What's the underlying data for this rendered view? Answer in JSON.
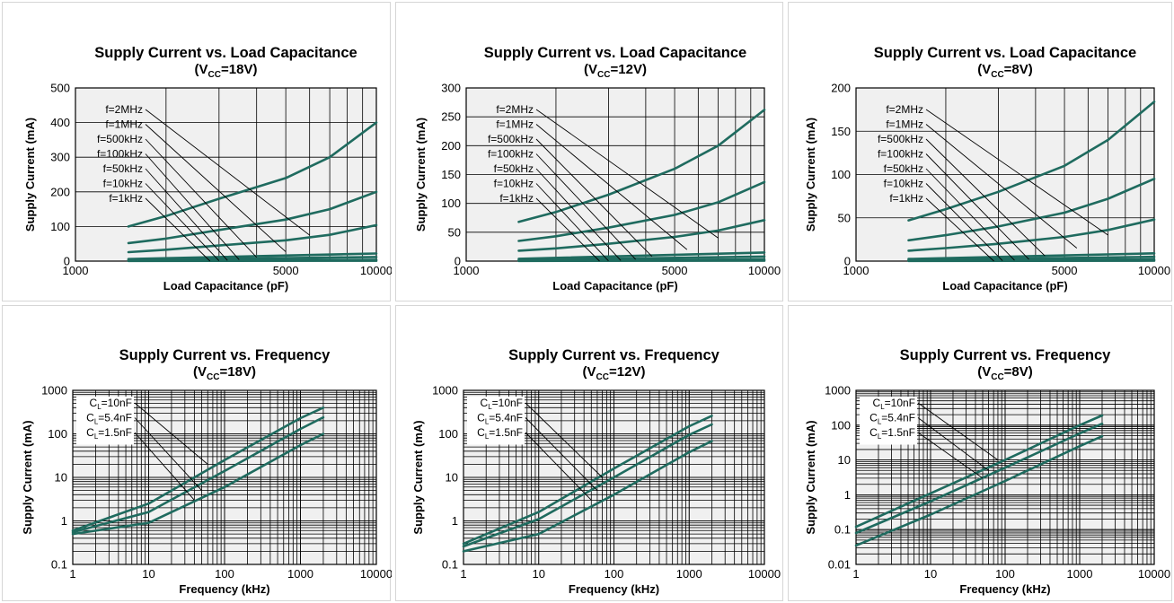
{
  "colors": {
    "plot_bg": "#f0f0f0",
    "grid": "#000000",
    "series": "#1f6b5f",
    "text": "#000000"
  },
  "chart_data": [
    {
      "type": "line",
      "title": "Supply Current vs. Load Capacitance",
      "subtitle": [
        "(V",
        "CC",
        "=18V)"
      ],
      "xlabel": "Load Capacitance (pF)",
      "ylabel": "Supply Current (mA)",
      "xscale": "log",
      "yscale": "linear",
      "xlim": [
        1000,
        10000
      ],
      "ylim": [
        0,
        500
      ],
      "xticks": [
        "1000",
        "5000",
        "10000"
      ],
      "xtick_values": [
        1000,
        5000,
        10000
      ],
      "yticks": [
        "0",
        "100",
        "200",
        "300",
        "400",
        "500"
      ],
      "ytick_values": [
        0,
        100,
        200,
        300,
        400,
        500
      ],
      "xgrid": [
        2000,
        3000,
        4000,
        5000,
        6000,
        7000,
        8000,
        9000
      ],
      "ygrid": [
        100,
        200,
        300,
        400
      ],
      "legend_labels": [
        "f=2MHz",
        "f=1MHz",
        "f=500kHz",
        "f=100kHz",
        "f=50kHz",
        "f=10kHz",
        "f=1kHz"
      ],
      "leader_targets": [
        [
          6000,
          75
        ],
        [
          5000,
          27
        ],
        [
          4000,
          11
        ],
        [
          3500,
          4
        ],
        [
          3200,
          2
        ],
        [
          3000,
          1
        ],
        [
          2800,
          0
        ]
      ],
      "series": [
        {
          "x": [
            1500,
            2000,
            3000,
            5000,
            7000,
            10000
          ],
          "y": [
            100,
            130,
            180,
            240,
            300,
            400
          ]
        },
        {
          "x": [
            1500,
            2000,
            3000,
            5000,
            7000,
            10000
          ],
          "y": [
            52,
            65,
            90,
            120,
            150,
            200
          ]
        },
        {
          "x": [
            1500,
            2000,
            3000,
            5000,
            7000,
            10000
          ],
          "y": [
            26,
            33,
            45,
            60,
            76,
            104
          ]
        },
        {
          "x": [
            1500,
            10000
          ],
          "y": [
            6,
            22
          ]
        },
        {
          "x": [
            1500,
            10000
          ],
          "y": [
            3,
            12
          ]
        },
        {
          "x": [
            1500,
            10000
          ],
          "y": [
            1,
            4
          ]
        },
        {
          "x": [
            1500,
            10000
          ],
          "y": [
            0.5,
            1
          ]
        }
      ]
    },
    {
      "type": "line",
      "title": "Supply Current vs. Load Capacitance",
      "subtitle": [
        "(V",
        "CC",
        "=12V)"
      ],
      "xlabel": "Load Capacitance (pF)",
      "ylabel": "Supply Current (mA)",
      "xscale": "log",
      "yscale": "linear",
      "xlim": [
        1000,
        10000
      ],
      "ylim": [
        0,
        300
      ],
      "xticks": [
        "1000",
        "5000",
        "10000"
      ],
      "xtick_values": [
        1000,
        5000,
        10000
      ],
      "yticks": [
        "0",
        "50",
        "100",
        "150",
        "200",
        "250",
        "300"
      ],
      "ytick_values": [
        0,
        50,
        100,
        150,
        200,
        250,
        300
      ],
      "xgrid": [
        2000,
        3000,
        4000,
        5000,
        6000,
        7000,
        8000,
        9000
      ],
      "ygrid": [
        50,
        100,
        150,
        200,
        250
      ],
      "legend_labels": [
        "f=2MHz",
        "f=1MHz",
        "f=500kHz",
        "f=100kHz",
        "f=50kHz",
        "f=10kHz",
        "f=1kHz"
      ],
      "leader_targets": [
        [
          7000,
          40
        ],
        [
          5500,
          20
        ],
        [
          4200,
          8
        ],
        [
          3700,
          3
        ],
        [
          3300,
          1
        ],
        [
          3000,
          0.5
        ],
        [
          2800,
          0
        ]
      ],
      "series": [
        {
          "x": [
            1500,
            2000,
            3000,
            5000,
            7000,
            10000
          ],
          "y": [
            68,
            85,
            115,
            160,
            200,
            262
          ]
        },
        {
          "x": [
            1500,
            2000,
            3000,
            5000,
            7000,
            10000
          ],
          "y": [
            35,
            43,
            58,
            80,
            102,
            137
          ]
        },
        {
          "x": [
            1500,
            2000,
            3000,
            5000,
            7000,
            10000
          ],
          "y": [
            18,
            22,
            30,
            42,
            53,
            71
          ]
        },
        {
          "x": [
            1500,
            10000
          ],
          "y": [
            4,
            15
          ]
        },
        {
          "x": [
            1500,
            10000
          ],
          "y": [
            2,
            8
          ]
        },
        {
          "x": [
            1500,
            10000
          ],
          "y": [
            0.8,
            3
          ]
        },
        {
          "x": [
            1500,
            10000
          ],
          "y": [
            0.3,
            0.8
          ]
        }
      ]
    },
    {
      "type": "line",
      "title": "Supply Current vs. Load Capacitance",
      "subtitle": [
        "(V",
        "CC",
        "=8V)"
      ],
      "xlabel": "Load Capacitance (pF)",
      "ylabel": "Supply Current (mA)",
      "xscale": "log",
      "yscale": "linear",
      "xlim": [
        1000,
        10000
      ],
      "ylim": [
        0,
        200
      ],
      "xticks": [
        "1000",
        "5000",
        "10000"
      ],
      "xtick_values": [
        1000,
        5000,
        10000
      ],
      "yticks": [
        "0",
        "50",
        "100",
        "150",
        "200"
      ],
      "ytick_values": [
        0,
        50,
        100,
        150,
        200
      ],
      "xgrid": [
        2000,
        3000,
        4000,
        5000,
        6000,
        7000,
        8000,
        9000
      ],
      "ygrid": [
        50,
        100,
        150
      ],
      "legend_labels": [
        "f=2MHz",
        "f=1MHz",
        "f=500kHz",
        "f=100kHz",
        "f=50kHz",
        "f=10kHz",
        "f=1kHz"
      ],
      "leader_targets": [
        [
          7000,
          30
        ],
        [
          5500,
          15
        ],
        [
          4300,
          6
        ],
        [
          3800,
          2
        ],
        [
          3400,
          1
        ],
        [
          3100,
          0.5
        ],
        [
          2900,
          0
        ]
      ],
      "series": [
        {
          "x": [
            1500,
            2000,
            3000,
            5000,
            7000,
            10000
          ],
          "y": [
            47,
            60,
            80,
            110,
            140,
            184
          ]
        },
        {
          "x": [
            1500,
            2000,
            3000,
            5000,
            7000,
            10000
          ],
          "y": [
            24,
            30,
            40,
            56,
            72,
            95
          ]
        },
        {
          "x": [
            1500,
            2000,
            3000,
            5000,
            7000,
            10000
          ],
          "y": [
            12,
            15,
            20,
            28,
            36,
            48
          ]
        },
        {
          "x": [
            1500,
            10000
          ],
          "y": [
            2.5,
            9
          ]
        },
        {
          "x": [
            1500,
            10000
          ],
          "y": [
            1.2,
            5
          ]
        },
        {
          "x": [
            1500,
            10000
          ],
          "y": [
            0.5,
            2
          ]
        },
        {
          "x": [
            1500,
            10000
          ],
          "y": [
            0.2,
            0.5
          ]
        }
      ]
    },
    {
      "type": "line",
      "title": "Supply Current vs. Frequency",
      "subtitle": [
        "(V",
        "CC",
        "=18V)"
      ],
      "xlabel": "Frequency (kHz)",
      "ylabel": "Supply Current (mA)",
      "xscale": "log",
      "yscale": "log",
      "xlim": [
        1,
        10000
      ],
      "ylim": [
        0.1,
        1000
      ],
      "xticks": [
        "1",
        "10",
        "100",
        "1000",
        "10000"
      ],
      "xtick_values": [
        1,
        10,
        100,
        1000,
        10000
      ],
      "yticks": [
        "0.1",
        "1",
        "10",
        "100",
        "1000"
      ],
      "ytick_values": [
        0.1,
        1,
        10,
        100,
        1000
      ],
      "legend_labels": [
        [
          "C",
          "L",
          "=10nF"
        ],
        [
          "C",
          "L",
          "=5.4nF"
        ],
        [
          "C",
          "L",
          "=1.5nF"
        ]
      ],
      "leader_targets": [
        [
          60,
          20
        ],
        [
          50,
          5
        ],
        [
          40,
          3
        ]
      ],
      "series": [
        {
          "x": [
            1,
            10,
            100,
            1000,
            2000
          ],
          "y": [
            0.6,
            2.5,
            25,
            230,
            400
          ]
        },
        {
          "x": [
            1,
            10,
            100,
            1000,
            2000
          ],
          "y": [
            0.55,
            1.6,
            14,
            130,
            240
          ]
        },
        {
          "x": [
            1,
            10,
            100,
            1000,
            2000
          ],
          "y": [
            0.5,
            0.9,
            6,
            55,
            100
          ]
        }
      ]
    },
    {
      "type": "line",
      "title": "Supply Current vs. Frequency",
      "subtitle": [
        "(V",
        "CC",
        "=12V)"
      ],
      "xlabel": "Frequency (kHz)",
      "ylabel": "Supply Current (mA)",
      "xscale": "log",
      "yscale": "log",
      "xlim": [
        1,
        10000
      ],
      "ylim": [
        0.1,
        1000
      ],
      "xticks": [
        "1",
        "10",
        "100",
        "1000",
        "10000"
      ],
      "xtick_values": [
        1,
        10,
        100,
        1000,
        10000
      ],
      "yticks": [
        "0.1",
        "1",
        "10",
        "100",
        "1000"
      ],
      "ytick_values": [
        0.1,
        1,
        10,
        100,
        1000
      ],
      "legend_labels": [
        [
          "C",
          "L",
          "=10nF"
        ],
        [
          "C",
          "L",
          "=5.4nF"
        ],
        [
          "C",
          "L",
          "=1.5nF"
        ]
      ],
      "leader_targets": [
        [
          70,
          10
        ],
        [
          60,
          5
        ],
        [
          50,
          3
        ]
      ],
      "series": [
        {
          "x": [
            1,
            10,
            100,
            1000,
            2000
          ],
          "y": [
            0.3,
            1.6,
            16,
            150,
            260
          ]
        },
        {
          "x": [
            1,
            10,
            100,
            1000,
            2000
          ],
          "y": [
            0.26,
            1.1,
            10,
            95,
            165
          ]
        },
        {
          "x": [
            1,
            10,
            100,
            1000,
            2000
          ],
          "y": [
            0.2,
            0.5,
            4,
            38,
            68
          ]
        }
      ]
    },
    {
      "type": "line",
      "title": "Supply Current vs. Frequency",
      "subtitle": [
        "(V",
        "CC",
        "=8V)"
      ],
      "xlabel": "Frequency (kHz)",
      "ylabel": "Supply Current (mA)",
      "xscale": "log",
      "yscale": "log",
      "xlim": [
        1,
        10000
      ],
      "ylim": [
        0.01,
        1000
      ],
      "xticks": [
        "1",
        "10",
        "100",
        "1000",
        "10000"
      ],
      "xtick_values": [
        1,
        10,
        100,
        1000,
        10000
      ],
      "yticks": [
        "0.01",
        "0.1",
        "1",
        "10",
        "100",
        "1000"
      ],
      "ytick_values": [
        0.01,
        0.1,
        1,
        10,
        100,
        1000
      ],
      "legend_labels": [
        [
          "C",
          "L",
          "=10nF"
        ],
        [
          "C",
          "L",
          "=5.4nF"
        ],
        [
          "C",
          "L",
          "=1.5nF"
        ]
      ],
      "leader_targets": [
        [
          80,
          10
        ],
        [
          60,
          5
        ],
        [
          50,
          3
        ]
      ],
      "series": [
        {
          "x": [
            1,
            10,
            100,
            1000,
            2000
          ],
          "y": [
            0.12,
            1.1,
            10,
            100,
            190
          ]
        },
        {
          "x": [
            1,
            10,
            100,
            1000,
            2000
          ],
          "y": [
            0.08,
            0.65,
            6,
            58,
            110
          ]
        },
        {
          "x": [
            1,
            10,
            100,
            1000,
            2000
          ],
          "y": [
            0.035,
            0.27,
            2.5,
            25,
            48
          ]
        }
      ]
    }
  ]
}
